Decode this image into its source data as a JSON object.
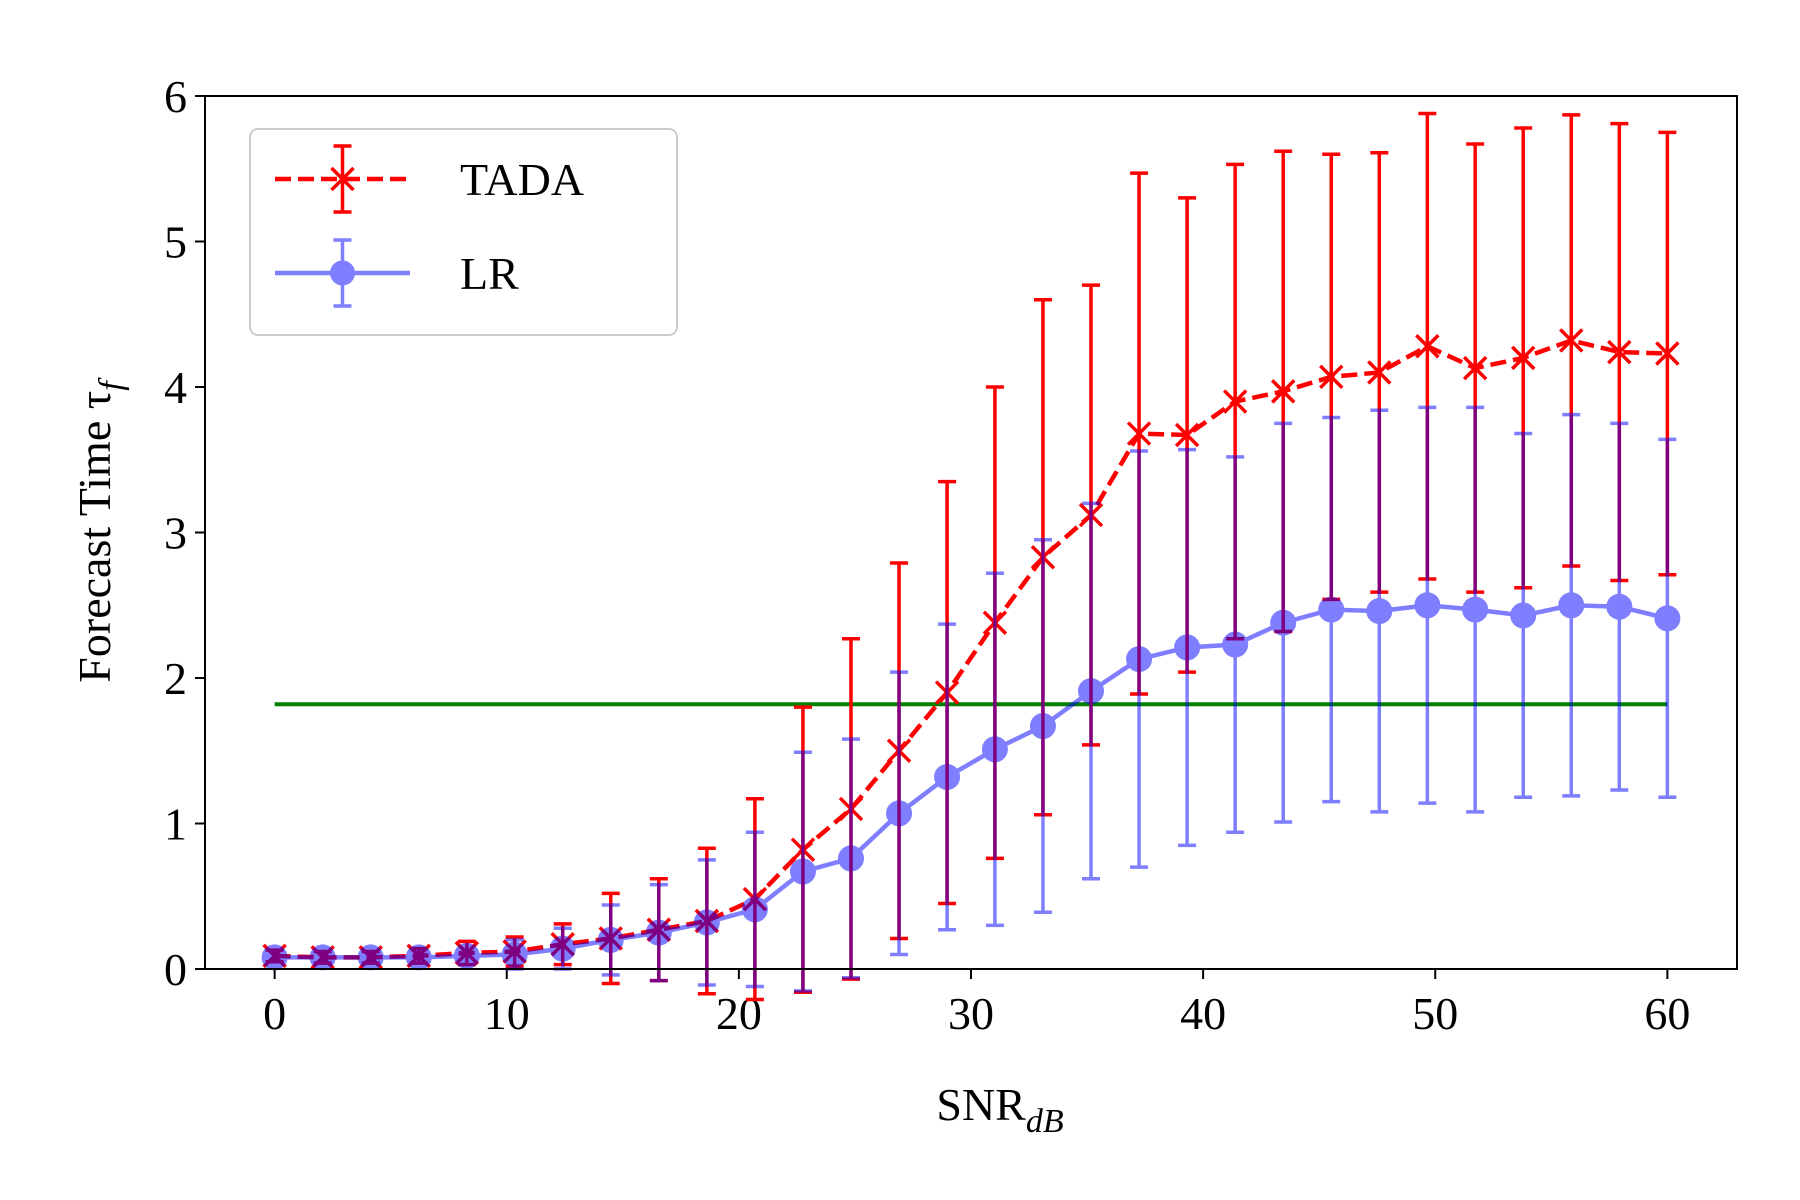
{
  "chart_data": {
    "type": "errorbar_line",
    "xlabel": "SNR",
    "xlabel_sub": "dB",
    "ylabel": "Forecast Time τ",
    "ylabel_sub": "f",
    "x": [
      0,
      2.07,
      4.14,
      6.21,
      8.28,
      10.34,
      12.41,
      14.48,
      16.55,
      18.62,
      20.69,
      22.76,
      24.83,
      26.9,
      28.97,
      31.03,
      33.1,
      35.17,
      37.24,
      39.31,
      41.38,
      43.45,
      45.52,
      47.59,
      49.66,
      51.72,
      53.79,
      55.86,
      57.93,
      60
    ],
    "series": [
      {
        "name": "TADA",
        "color": "#ff0000",
        "opacity": 1,
        "dash": true,
        "marker": "x",
        "values": [
          0.09,
          0.08,
          0.08,
          0.09,
          0.11,
          0.12,
          0.17,
          0.21,
          0.27,
          0.33,
          0.48,
          0.82,
          1.1,
          1.5,
          1.9,
          2.38,
          2.83,
          3.12,
          3.68,
          3.67,
          3.9,
          3.97,
          4.07,
          4.1,
          4.28,
          4.13,
          4.2,
          4.32,
          4.24,
          4.23
        ],
        "errors": [
          0.04,
          0.04,
          0.04,
          0.05,
          0.08,
          0.1,
          0.14,
          0.31,
          0.35,
          0.5,
          0.69,
          0.98,
          1.17,
          1.29,
          1.45,
          1.62,
          1.77,
          1.58,
          1.79,
          1.63,
          1.63,
          1.65,
          1.53,
          1.51,
          1.6,
          1.54,
          1.58,
          1.55,
          1.57,
          1.52
        ]
      },
      {
        "name": "LR",
        "color": "#0000ff",
        "opacity": 0.5,
        "dash": false,
        "marker": "o",
        "values": [
          0.08,
          0.08,
          0.08,
          0.08,
          0.09,
          0.1,
          0.14,
          0.2,
          0.25,
          0.32,
          0.41,
          0.67,
          0.76,
          1.07,
          1.32,
          1.51,
          1.67,
          1.91,
          2.13,
          2.21,
          2.23,
          2.38,
          2.47,
          2.46,
          2.5,
          2.47,
          2.43,
          2.5,
          2.49,
          2.41
        ],
        "errors": [
          0.04,
          0.04,
          0.04,
          0.05,
          0.06,
          0.1,
          0.14,
          0.24,
          0.33,
          0.43,
          0.53,
          0.82,
          0.82,
          0.97,
          1.05,
          1.21,
          1.28,
          1.29,
          1.43,
          1.36,
          1.29,
          1.37,
          1.32,
          1.38,
          1.36,
          1.39,
          1.25,
          1.31,
          1.26,
          1.23
        ]
      }
    ],
    "reference_line": {
      "y": 1.82,
      "x": [
        0,
        60
      ],
      "color": "#008000"
    },
    "xlim": [
      -3,
      63
    ],
    "ylim": [
      0,
      6
    ],
    "xticks": [
      0,
      10,
      20,
      30,
      40,
      50,
      60
    ],
    "yticks": [
      0,
      1,
      2,
      3,
      4,
      5,
      6
    ],
    "grid": false,
    "legend": "upper left"
  }
}
